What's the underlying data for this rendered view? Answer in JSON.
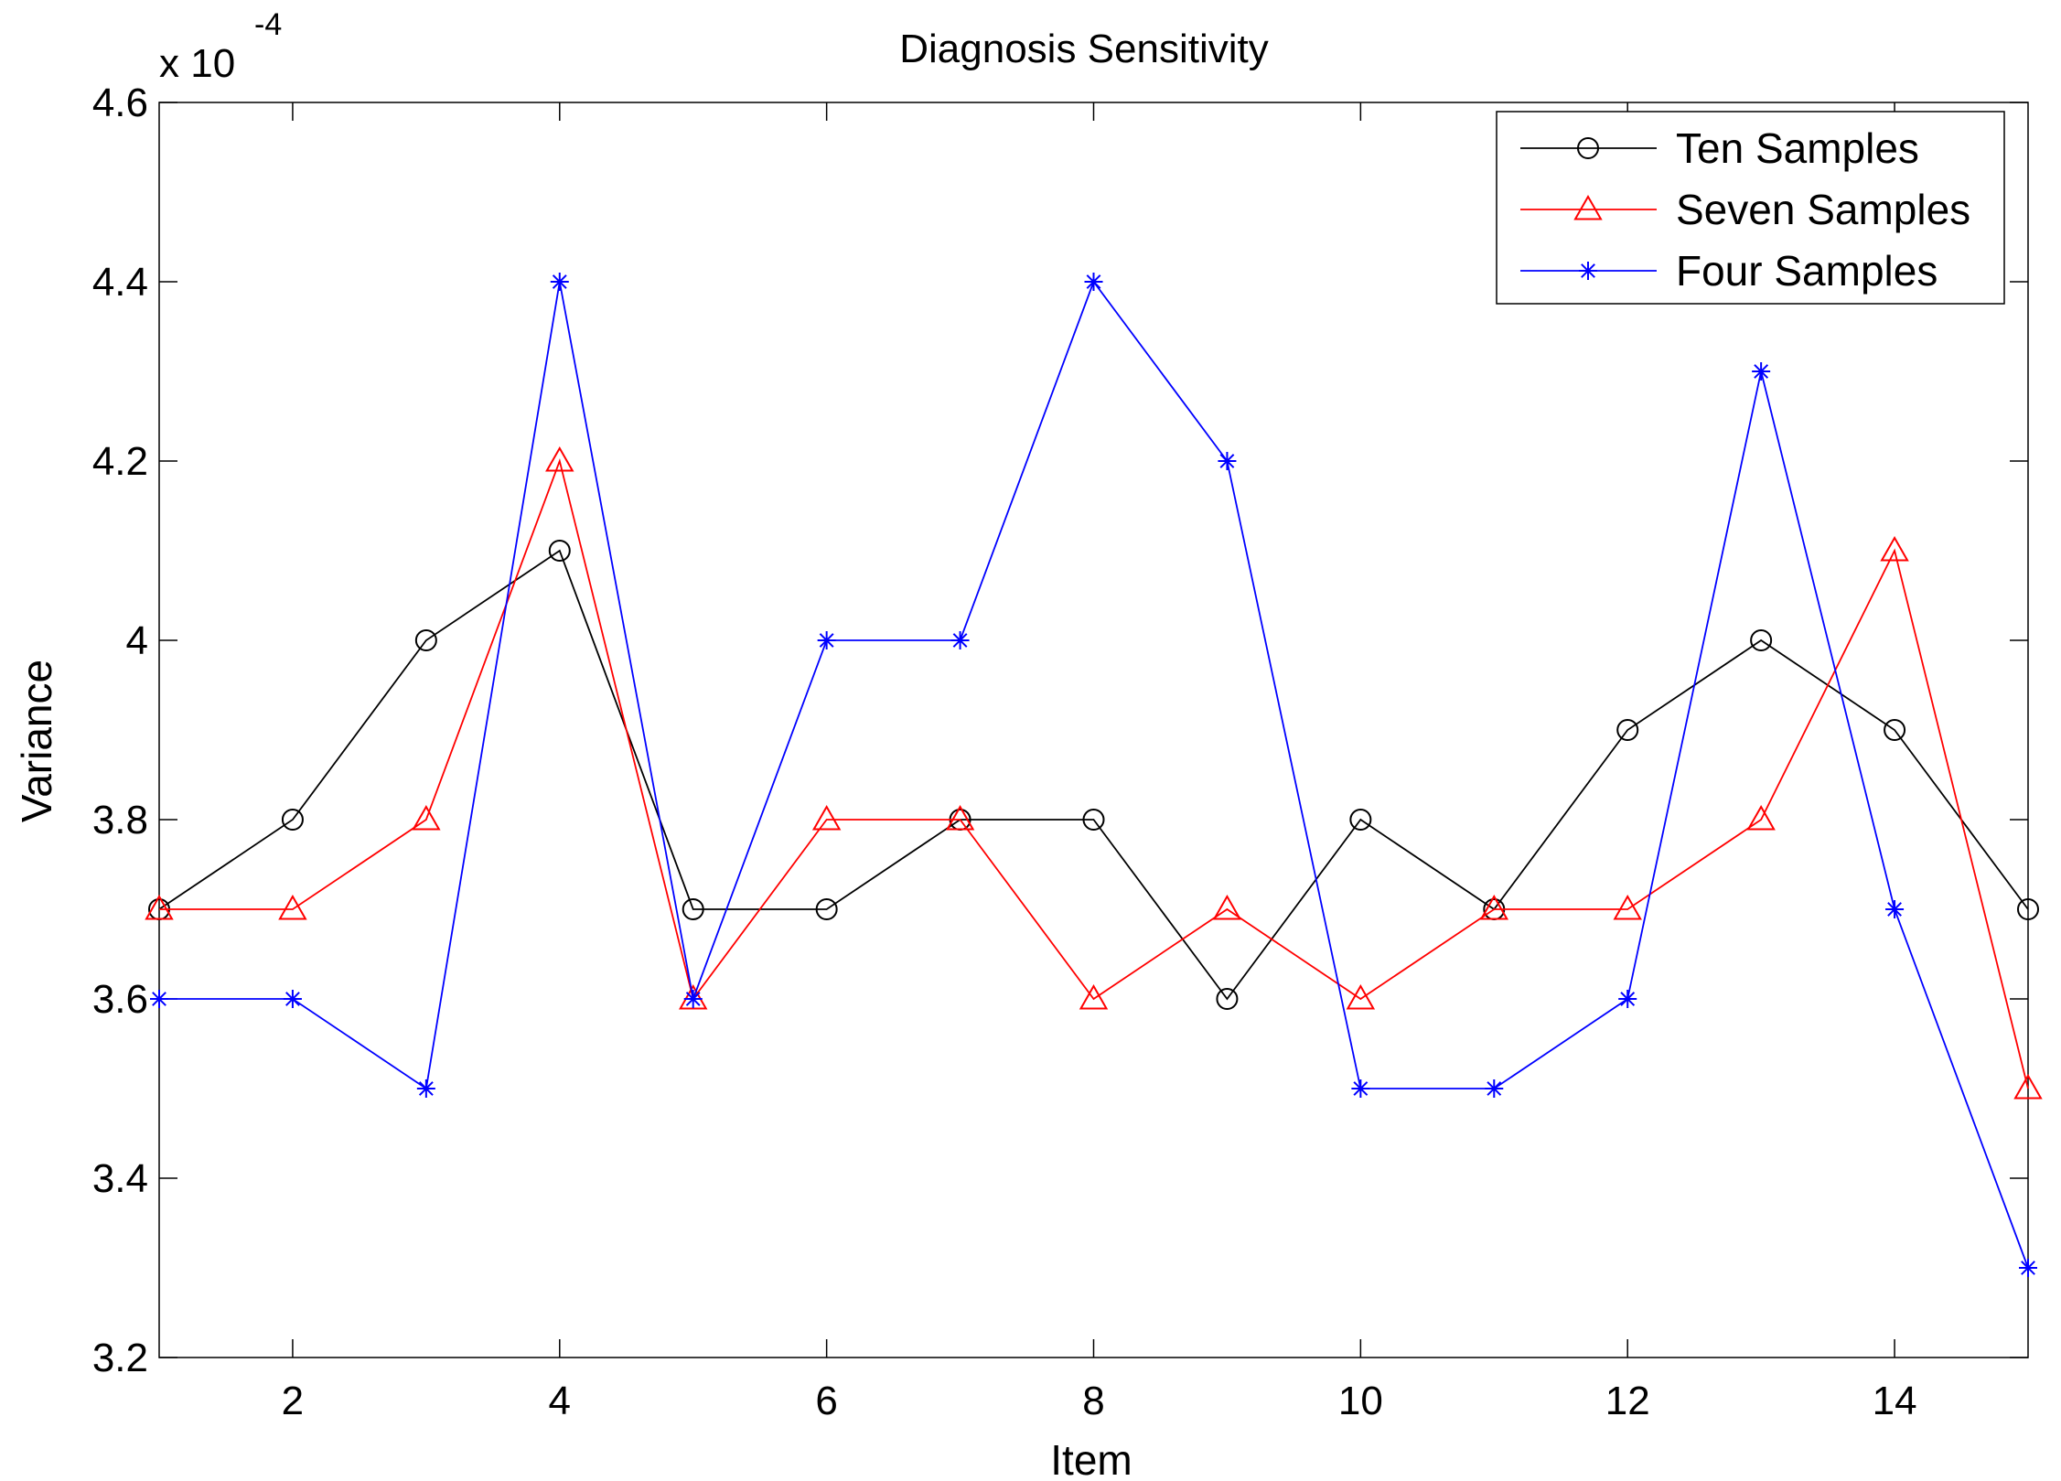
{
  "chart_data": {
    "type": "line",
    "title": "Diagnosis Sensitivity",
    "xlabel": "Item",
    "ylabel": "Variance",
    "y_multiplier": "x 10",
    "y_exponent": "-4",
    "xlim": [
      1,
      15
    ],
    "ylim": [
      3.2,
      4.6
    ],
    "xticks": [
      2,
      4,
      6,
      8,
      10,
      12,
      14
    ],
    "yticks": [
      3.2,
      3.4,
      3.6,
      3.8,
      4.0,
      4.2,
      4.4,
      4.6
    ],
    "ytick_labels": [
      "3.2",
      "3.4",
      "3.6",
      "3.8",
      "4",
      "4.2",
      "4.4",
      "4.6"
    ],
    "grid": false,
    "legend_position": "top-right",
    "x": [
      1,
      2,
      3,
      4,
      5,
      6,
      7,
      8,
      9,
      10,
      11,
      12,
      13,
      14,
      15
    ],
    "series": [
      {
        "name": "Ten Samples",
        "color": "#000000",
        "marker": "circle",
        "values": [
          3.7,
          3.8,
          4.0,
          4.1,
          3.7,
          3.7,
          3.8,
          3.8,
          3.6,
          3.8,
          3.7,
          3.9,
          4.0,
          3.9,
          3.7
        ]
      },
      {
        "name": "Seven Samples",
        "color": "#ff0000",
        "marker": "triangle",
        "values": [
          3.7,
          3.7,
          3.8,
          4.2,
          3.6,
          3.8,
          3.8,
          3.6,
          3.7,
          3.6,
          3.7,
          3.7,
          3.8,
          4.1,
          3.5
        ]
      },
      {
        "name": "Four Samples",
        "color": "#0000ff",
        "marker": "asterisk",
        "values": [
          3.6,
          3.6,
          3.5,
          4.4,
          3.6,
          4.0,
          4.0,
          4.4,
          4.2,
          3.5,
          3.5,
          3.6,
          4.3,
          3.7,
          3.3
        ]
      }
    ]
  }
}
